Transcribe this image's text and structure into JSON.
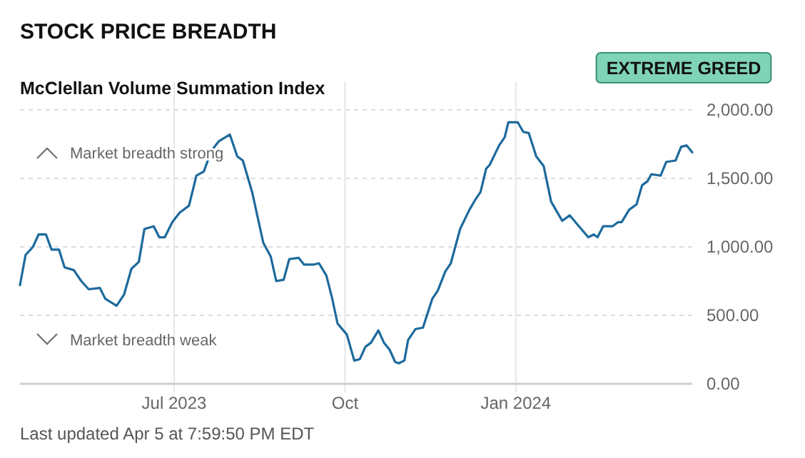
{
  "chart_data": {
    "type": "line",
    "title": "STOCK PRICE BREADTH",
    "subtitle": "McClellan Volume Summation Index",
    "annotations": [
      "EXTREME GREED",
      "Market breadth strong",
      "Market breadth weak",
      "Last updated Apr 5 at 7:59:50 PM EDT"
    ],
    "x": [
      "2023-04-09",
      "2023-04-12",
      "2023-04-16",
      "2023-04-19",
      "2023-04-23",
      "2023-04-26",
      "2023-04-30",
      "2023-05-03",
      "2023-05-08",
      "2023-05-12",
      "2023-05-16",
      "2023-05-22",
      "2023-05-25",
      "2023-05-31",
      "2023-06-04",
      "2023-06-08",
      "2023-06-12",
      "2023-06-15",
      "2023-06-20",
      "2023-06-23",
      "2023-06-26",
      "2023-06-30",
      "2023-07-04",
      "2023-07-09",
      "2023-07-13",
      "2023-07-17",
      "2023-07-21",
      "2023-07-25",
      "2023-07-31",
      "2023-08-04",
      "2023-08-07",
      "2023-08-12",
      "2023-08-18",
      "2023-08-22",
      "2023-08-25",
      "2023-08-29",
      "2023-09-01",
      "2023-09-06",
      "2023-09-09",
      "2023-09-14",
      "2023-09-17",
      "2023-09-21",
      "2023-09-24",
      "2023-09-27",
      "2023-10-02",
      "2023-10-06",
      "2023-10-09",
      "2023-10-12",
      "2023-10-15",
      "2023-10-19",
      "2023-10-22",
      "2023-10-25",
      "2023-10-28",
      "2023-10-30",
      "2023-11-02",
      "2023-11-04",
      "2023-11-08",
      "2023-11-12",
      "2023-11-17",
      "2023-11-20",
      "2023-11-24",
      "2023-11-27",
      "2023-12-02",
      "2023-12-07",
      "2023-12-10",
      "2023-12-13",
      "2023-12-16",
      "2023-12-18",
      "2023-12-23",
      "2023-12-26",
      "2023-12-28",
      "2024-01-02",
      "2024-01-05",
      "2024-01-08",
      "2024-01-12",
      "2024-01-16",
      "2024-01-20",
      "2024-01-23",
      "2024-01-26",
      "2024-01-30",
      "2024-02-04",
      "2024-02-09",
      "2024-02-12",
      "2024-02-14",
      "2024-02-17",
      "2024-02-22",
      "2024-02-25",
      "2024-02-27",
      "2024-03-02",
      "2024-03-06",
      "2024-03-09",
      "2024-03-12",
      "2024-03-14",
      "2024-03-19",
      "2024-03-22",
      "2024-03-27",
      "2024-03-30",
      "2024-04-02",
      "2024-04-05"
    ],
    "series": [
      {
        "color": "#1d6a9c",
        "values": [
          720,
          940,
          1000,
          1090,
          1090,
          980,
          980,
          850,
          830,
          750,
          690,
          700,
          620,
          570,
          650,
          840,
          890,
          1130,
          1150,
          1070,
          1070,
          1180,
          1250,
          1300,
          1520,
          1550,
          1700,
          1770,
          1820,
          1660,
          1630,
          1400,
          1030,
          930,
          750,
          760,
          910,
          920,
          870,
          870,
          880,
          790,
          630,
          440,
          360,
          170,
          180,
          270,
          300,
          390,
          300,
          250,
          160,
          150,
          170,
          320,
          400,
          410,
          620,
          680,
          820,
          880,
          1130,
          1270,
          1340,
          1400,
          1570,
          1600,
          1740,
          1800,
          1910,
          1910,
          1840,
          1830,
          1660,
          1590,
          1330,
          1260,
          1190,
          1230,
          1150,
          1070,
          1090,
          1070,
          1150,
          1150,
          1180,
          1180,
          1270,
          1310,
          1450,
          1480,
          1530,
          1520,
          1620,
          1630,
          1730,
          1740,
          1690
        ]
      }
    ],
    "xlim": [
      "2023-04-09",
      "2024-04-05"
    ],
    "xticks": [
      {
        "value": "2023-07-01",
        "label": "Jul 2023"
      },
      {
        "value": "2023-10-01",
        "label": "Oct"
      },
      {
        "value": "2024-01-01",
        "label": "Jan 2024"
      }
    ],
    "ylim": [
      0,
      2000
    ],
    "yticks": [
      {
        "value": 0,
        "label": "0.00"
      },
      {
        "value": 500,
        "label": "500.00"
      },
      {
        "value": 1000,
        "label": "1,000.00"
      },
      {
        "value": 1500,
        "label": "1,500.00"
      },
      {
        "value": 2000,
        "label": "2,000.00"
      }
    ],
    "grid": true,
    "marker": "none",
    "line_style": "solid"
  }
}
